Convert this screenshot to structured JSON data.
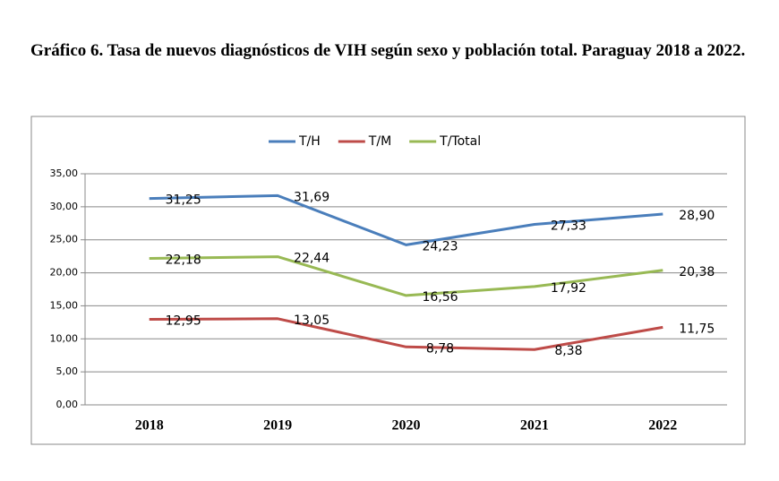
{
  "chart_data": {
    "type": "line",
    "title": "Gráfico 6. Tasa de nuevos diagnósticos de VIH según sexo y población total.  Paraguay 2018 a 2022.",
    "categories": [
      "2018",
      "2019",
      "2020",
      "2021",
      "2022"
    ],
    "series": [
      {
        "name": "T/H",
        "color": "#4a7ebb",
        "values": [
          31.25,
          31.69,
          24.23,
          27.33,
          28.9
        ],
        "value_labels": [
          "31,25",
          "31,69",
          "24,23",
          "27,33",
          "28,90"
        ]
      },
      {
        "name": "T/M",
        "color": "#be4b48",
        "values": [
          12.95,
          13.05,
          8.78,
          8.38,
          11.75
        ],
        "value_labels": [
          "12,95",
          "13,05",
          "8,78",
          "8,38",
          "11,75"
        ]
      },
      {
        "name": "T/Total",
        "color": "#98b954",
        "values": [
          22.18,
          22.44,
          16.56,
          17.92,
          20.38
        ],
        "value_labels": [
          "22,18",
          "22,44",
          "16,56",
          "17,92",
          "20,38"
        ]
      }
    ],
    "ylim": [
      0,
      35
    ],
    "yticks": [
      {
        "value": 0,
        "label": "0,00"
      },
      {
        "value": 5,
        "label": "5,00"
      },
      {
        "value": 10,
        "label": "10,00"
      },
      {
        "value": 15,
        "label": "15,00"
      },
      {
        "value": 20,
        "label": "20,00"
      },
      {
        "value": 25,
        "label": "25,00"
      },
      {
        "value": 30,
        "label": "30,00"
      },
      {
        "value": 35,
        "label": "35,00"
      }
    ],
    "grid": true,
    "legend": "top"
  }
}
